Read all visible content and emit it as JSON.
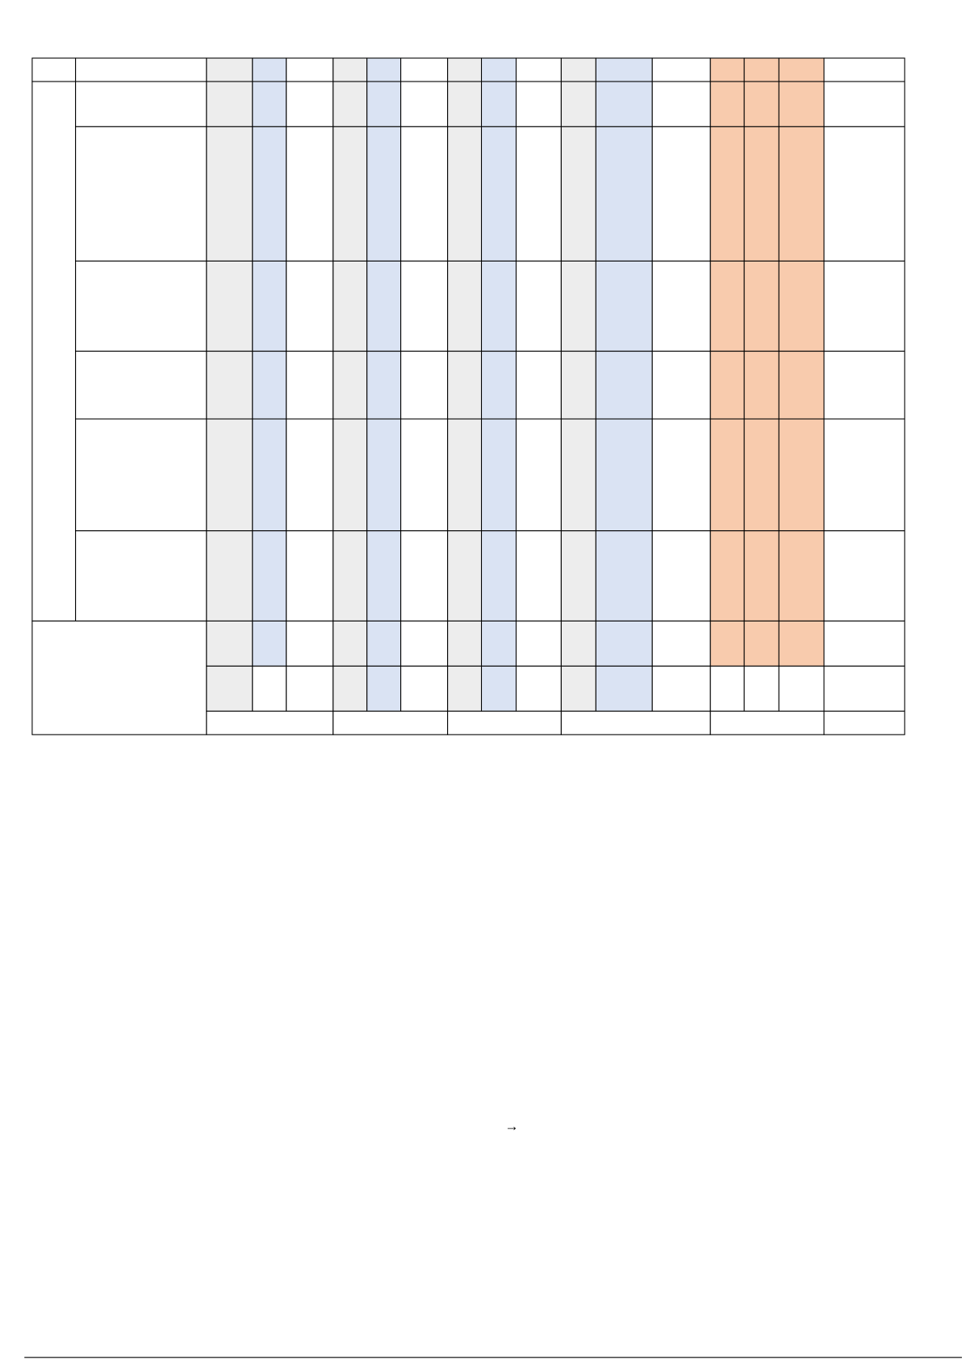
{
  "document": {
    "arrow": "→"
  }
}
